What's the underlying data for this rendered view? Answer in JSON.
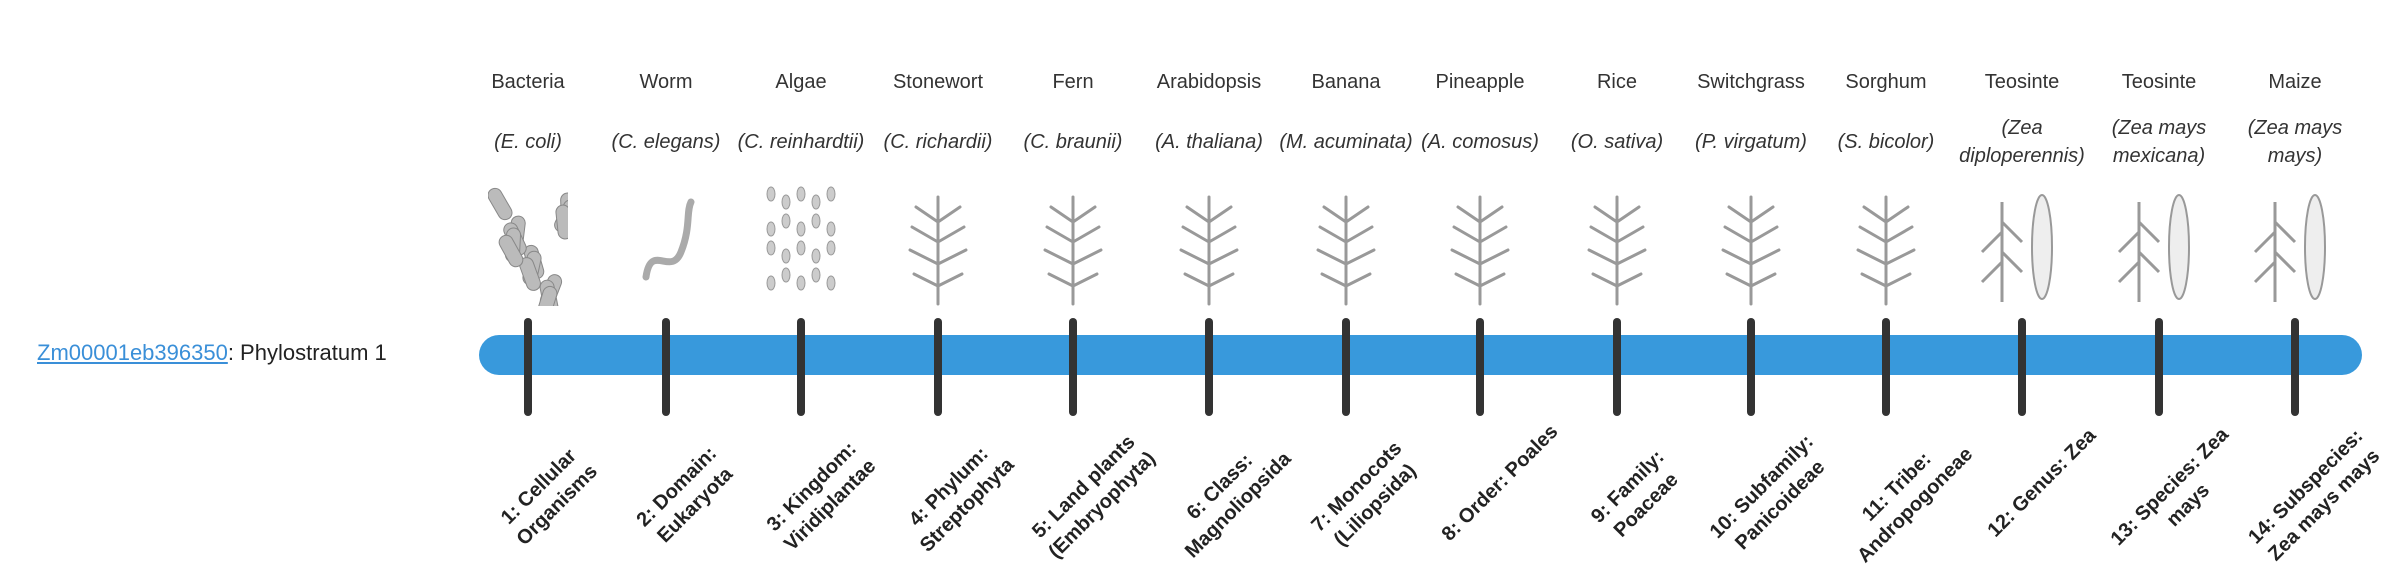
{
  "gene": {
    "id": "Zm00001eb396350",
    "suffix": ": Phylostratum 1"
  },
  "bar_color": "#3899dc",
  "strata": [
    {
      "common": "Bacteria",
      "species": "(E. coli)",
      "icon": "bacteria-icon",
      "label": "1: Cellular Organisms"
    },
    {
      "common": "Worm",
      "species": "(C. elegans)",
      "icon": "worm-icon",
      "label": "2: Domain: Eukaryota"
    },
    {
      "common": "Algae",
      "species": "(C. reinhardtii)",
      "icon": "algae-icon",
      "label": "3: Kingdom: Viridiplantae"
    },
    {
      "common": "Stonewort",
      "species": "(C. richardii)",
      "icon": "stonewort-icon",
      "label": "4: Phylum: Streptophyta"
    },
    {
      "common": "Fern",
      "species": "(C. braunii)",
      "icon": "fern-icon",
      "label": "5: Land plants (Embryophyta)"
    },
    {
      "common": "Arabidopsis",
      "species": "(A. thaliana)",
      "icon": "arabidopsis-icon",
      "label": "6: Class: Magnoliopsida"
    },
    {
      "common": "Banana",
      "species": "(M. acuminata)",
      "icon": "banana-icon",
      "label": "7: Monocots (Liliopsida)"
    },
    {
      "common": "Pineapple",
      "species": "(A. comosus)",
      "icon": "pineapple-icon",
      "label": "8: Order: Poales"
    },
    {
      "common": "Rice",
      "species": "(O. sativa)",
      "icon": "rice-icon",
      "label": "9: Family: Poaceae"
    },
    {
      "common": "Switchgrass",
      "species": "(P. virgatum)",
      "icon": "switchgrass-icon",
      "label": "10: Subfamily: Panicoideae"
    },
    {
      "common": "Sorghum",
      "species": "(S. bicolor)",
      "icon": "sorghum-icon",
      "label": "11: Tribe: Andropogoneae"
    },
    {
      "common": "Teosinte",
      "species": "(Zea diploperennis)",
      "icon": "teosinte-icon",
      "label": "12: Genus: Zea"
    },
    {
      "common": "Teosinte",
      "species": "(Zea mays mexicana)",
      "icon": "teosinte-icon",
      "label": "13: Species: Zea mays"
    },
    {
      "common": "Maize",
      "species": "(Zea mays mays)",
      "icon": "maize-icon",
      "label": "14: Subspecies: Zea mays mays"
    }
  ]
}
